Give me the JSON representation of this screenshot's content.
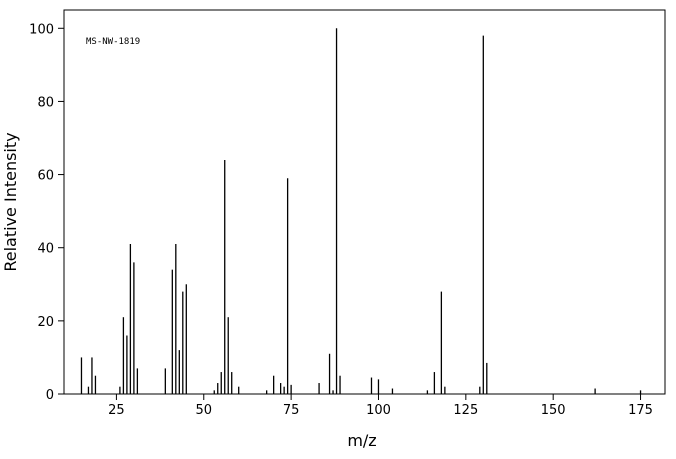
{
  "chart_data": {
    "type": "stem",
    "annotation": "MS-NW-1819",
    "xlabel": "m/z",
    "ylabel": "Relative Intensity",
    "x": [
      15,
      17,
      18,
      19,
      26,
      27,
      28,
      29,
      30,
      31,
      39,
      41,
      42,
      43,
      44,
      45,
      53,
      54,
      55,
      56,
      57,
      58,
      60,
      68,
      70,
      72,
      73,
      74,
      75,
      83,
      86,
      87,
      88,
      89,
      98,
      100,
      104,
      114,
      116,
      118,
      119,
      129,
      130,
      131,
      162,
      175
    ],
    "values": [
      10,
      2,
      10,
      5,
      2,
      21,
      16,
      41,
      36,
      7,
      7,
      34,
      41,
      12,
      28,
      30,
      1,
      3,
      6,
      64,
      21,
      6,
      2,
      1,
      5,
      3,
      2,
      59,
      2.5,
      3,
      11,
      1,
      100,
      5,
      4.5,
      4,
      1.5,
      1,
      6,
      28,
      2,
      2,
      98,
      8.5,
      1.5,
      1
    ],
    "color": "#000000",
    "xlim": [
      10,
      182
    ],
    "ylim": [
      0,
      105
    ],
    "xticks": [
      25,
      50,
      75,
      100,
      125,
      150,
      175
    ],
    "yticks": [
      0,
      20,
      40,
      60,
      80,
      100
    ]
  }
}
